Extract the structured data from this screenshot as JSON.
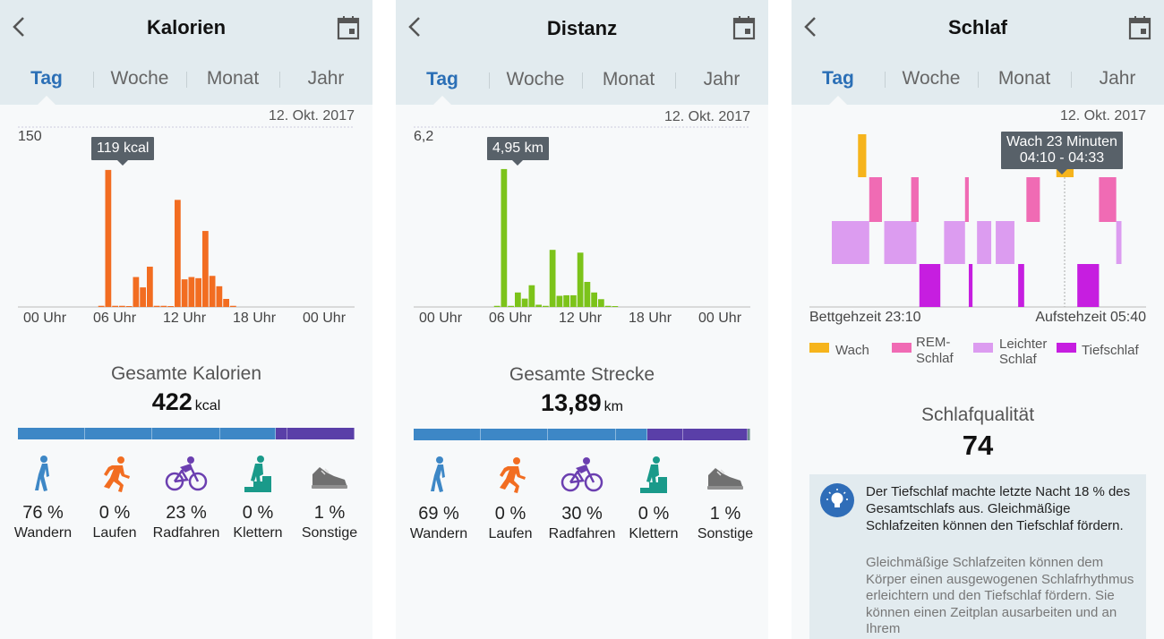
{
  "panels": {
    "kalorien": {
      "title": "Kalorien",
      "tabs": [
        "Tag",
        "Woche",
        "Monat",
        "Jahr"
      ],
      "date": "12. Okt. 2017",
      "tooltip": "119 kcal",
      "total_title": "Gesamte Kalorien",
      "total_value": "422",
      "total_unit": "kcal",
      "activities": [
        {
          "icon": "walking-icon",
          "pct": "76 %",
          "label": "Wandern"
        },
        {
          "icon": "running-icon",
          "pct": "0 %",
          "label": "Laufen"
        },
        {
          "icon": "cycling-icon",
          "pct": "23 %",
          "label": "Radfahren"
        },
        {
          "icon": "climbing-icon",
          "pct": "0 %",
          "label": "Klettern"
        },
        {
          "icon": "shoe-icon",
          "pct": "1 %",
          "label": "Sonstige"
        }
      ],
      "bar_segments": [
        {
          "value": 20,
          "color": "#3d87c6"
        },
        {
          "value": 20,
          "color": "#3d87c6"
        },
        {
          "value": 20,
          "color": "#3d87c6"
        },
        {
          "value": 16.5,
          "color": "#3d87c6"
        },
        {
          "value": 3.5,
          "color": "#5a3fa8"
        },
        {
          "value": 20,
          "color": "#5a3fa8"
        }
      ]
    },
    "distanz": {
      "title": "Distanz",
      "tabs": [
        "Tag",
        "Woche",
        "Monat",
        "Jahr"
      ],
      "date": "12. Okt. 2017",
      "tooltip": "4,95 km",
      "total_title": "Gesamte Strecke",
      "total_value": "13,89",
      "total_unit": "km",
      "activities": [
        {
          "icon": "walking-icon",
          "pct": "69 %",
          "label": "Wandern"
        },
        {
          "icon": "running-icon",
          "pct": "0 %",
          "label": "Laufen"
        },
        {
          "icon": "cycling-icon",
          "pct": "30 %",
          "label": "Radfahren"
        },
        {
          "icon": "climbing-icon",
          "pct": "0 %",
          "label": "Klettern"
        },
        {
          "icon": "shoe-icon",
          "pct": "1 %",
          "label": "Sonstige"
        }
      ],
      "bar_segments": [
        {
          "value": 20,
          "color": "#3d87c6"
        },
        {
          "value": 20,
          "color": "#3d87c6"
        },
        {
          "value": 20,
          "color": "#3d87c6"
        },
        {
          "value": 9.5,
          "color": "#3d87c6"
        },
        {
          "value": 10.5,
          "color": "#5a3fa8"
        },
        {
          "value": 19.3,
          "color": "#5a3fa8"
        },
        {
          "value": 0.7,
          "color": "#6f8f8f"
        }
      ]
    },
    "schlaf": {
      "title": "Schlaf",
      "tabs": [
        "Tag",
        "Woche",
        "Monat",
        "Jahr"
      ],
      "date": "12. Okt. 2017",
      "tooltip_line1": "Wach 23 Minuten",
      "tooltip_line2": "04:10 - 04:33",
      "bedtime": "Bettgehzeit 23:10",
      "wakeup": "Aufstehzeit 05:40",
      "legend": {
        "wach": "Wach",
        "rem_1": "REM-",
        "rem_2": "Schlaf",
        "leicht_1": "Leichter",
        "leicht_2": "Schlaf",
        "tief": "Tiefschlaf"
      },
      "quality_title": "Schlafqualität",
      "quality_value": "74",
      "info_text": "Der Tiefschlaf machte letzte Nacht 18 % des Gesamtschlafs aus. Gleichmäßige Schlafzeiten können den Tiefschlaf fördern.",
      "info_subtext": "Gleichmäßige Schlafzeiten können dem Körper einen ausgewogenen Schlafrhythmus erleichtern und den Tiefschlaf fördern. Sie können einen Zeitplan ausarbeiten und an Ihrem"
    }
  },
  "colors": {
    "accent": "#2b6fb6",
    "wach": "#f6b41c",
    "rem": "#f06bb4",
    "leicht": "#dc9cf0",
    "tief": "#c61ee0"
  },
  "chart_data": [
    {
      "type": "bar",
      "title": "Kalorien",
      "x_tick_labels": [
        "00 Uhr",
        "06 Uhr",
        "12 Uhr",
        "18 Uhr",
        "00 Uhr"
      ],
      "y_max_label": "150",
      "ylim": [
        0,
        150
      ],
      "hours": [
        5.5,
        6,
        6.5,
        7,
        7.5,
        8,
        8.5,
        9,
        9.5,
        10,
        10.5,
        11,
        11.5,
        12,
        12.5,
        13,
        13.5,
        14
      ],
      "values": [
        1,
        119,
        1,
        1,
        0,
        26,
        17,
        35,
        1,
        1,
        0,
        93,
        24,
        26,
        25,
        66,
        27,
        18
      ],
      "extra": [
        {
          "hour": 14.5,
          "value": 7
        },
        {
          "hour": 15,
          "value": 1
        }
      ],
      "color": "#f26d21",
      "highlight_label": "119 kcal"
    },
    {
      "type": "bar",
      "title": "Distanz",
      "x_tick_labels": [
        "00 Uhr",
        "06 Uhr",
        "12 Uhr",
        "18 Uhr",
        "00 Uhr"
      ],
      "y_max_label": "6,2",
      "ylim": [
        0,
        6.2
      ],
      "hours": [
        5.5,
        6,
        6.5,
        7,
        7.5,
        8,
        8.5,
        9,
        9.5,
        10,
        10.5,
        11,
        11.5,
        12,
        12.5,
        13,
        13.5,
        14
      ],
      "values": [
        0.04,
        4.95,
        0.04,
        0.52,
        0.3,
        0.78,
        0.08,
        0.04,
        2.05,
        0.4,
        0.42,
        0.42,
        1.95,
        0.9,
        0.52,
        0.28,
        0.04,
        0
      ],
      "color": "#7cc31a",
      "highlight_label": "4,95 km"
    },
    {
      "type": "timeline",
      "title": "Schlaf",
      "stages": [
        "Wach",
        "REM-Schlaf",
        "Leichter Schlaf",
        "Tiefschlaf"
      ],
      "segments": [
        {
          "stage": "wach",
          "start_min": 35,
          "end_min": 46
        },
        {
          "stage": "rem",
          "start_min": 50,
          "end_min": 67
        },
        {
          "stage": "leicht",
          "start_min": 0,
          "end_min": 50
        },
        {
          "stage": "leicht",
          "start_min": 70,
          "end_min": 113
        },
        {
          "stage": "tief",
          "start_min": 117,
          "end_min": 145
        },
        {
          "stage": "rem",
          "start_min": 106,
          "end_min": 116
        },
        {
          "stage": "leicht",
          "start_min": 150,
          "end_min": 178
        },
        {
          "stage": "tief",
          "start_min": 183,
          "end_min": 188
        },
        {
          "stage": "leicht",
          "start_min": 194,
          "end_min": 213
        },
        {
          "stage": "rem",
          "start_min": 178,
          "end_min": 183
        },
        {
          "stage": "leicht",
          "start_min": 219,
          "end_min": 244
        },
        {
          "stage": "tief",
          "start_min": 249,
          "end_min": 257
        },
        {
          "stage": "rem",
          "start_min": 260,
          "end_min": 278
        },
        {
          "stage": "wach",
          "start_min": 300,
          "end_min": 323
        },
        {
          "stage": "tief",
          "start_min": 328,
          "end_min": 357
        },
        {
          "stage": "rem",
          "start_min": 357,
          "end_min": 380
        },
        {
          "stage": "leicht",
          "start_min": 380,
          "end_min": 387
        }
      ],
      "start": "23:10",
      "end": "05:40"
    }
  ]
}
